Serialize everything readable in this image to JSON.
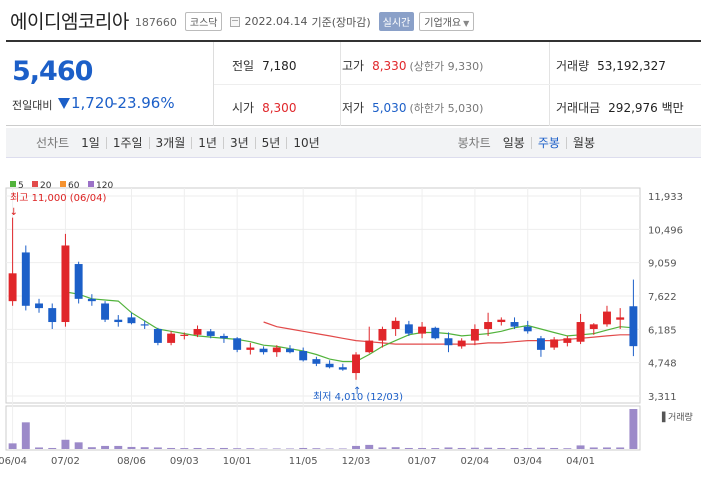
{
  "header": {
    "company": "에이디엠코리아",
    "code": "187660",
    "market": "코스닥",
    "date": "2022.04.14",
    "basis": "기준(장마감)",
    "realtime": "실시간",
    "overview": "기업개요",
    "overview_caret": "▼"
  },
  "summary": {
    "price": "5,460",
    "change_label": "전일대비",
    "change": "1,720",
    "change_pct": "-23.96%",
    "prev_close_label": "전일",
    "prev_close": "7,180",
    "high_label": "고가",
    "high": "8,330",
    "high_note": "(상한가 9,330)",
    "volume_label": "거래량",
    "volume": "53,192,327",
    "open_label": "시가",
    "open": "8,300",
    "low_label": "저가",
    "low": "5,030",
    "low_note": "(하한가 5,030)",
    "amount_label": "거래대금",
    "amount": "292,976 백만"
  },
  "toolbar": {
    "line_label": "선차트",
    "line_items": [
      "1일",
      "1주일",
      "3개월",
      "1년",
      "3년",
      "5년",
      "10년"
    ],
    "candle_label": "봉차트",
    "candle_items": [
      "일봉",
      "주봉",
      "월봉"
    ],
    "candle_active": "주봉"
  },
  "colors": {
    "up": "#e0262a",
    "down": "#1c5fc8",
    "ma5": "#52b33c",
    "ma20": "#e24a4a",
    "ma60": "#f5922f",
    "ma120": "#9b71c7",
    "volume": "#9c8ac9"
  },
  "chart_data": {
    "type": "candlestick",
    "legend": [
      "5",
      "20",
      "60",
      "120"
    ],
    "y_ticks": [
      "11,933",
      "10,496",
      "9,059",
      "7,622",
      "6,185",
      "4,748",
      "3,311"
    ],
    "y_tick_values": [
      11933,
      10496,
      9059,
      7622,
      6185,
      4748,
      3311
    ],
    "x_ticks": [
      "06/04",
      "07/02",
      "08/06",
      "09/03",
      "10/01",
      "11/05",
      "12/03",
      "01/07",
      "02/04",
      "03/04",
      "04/01"
    ],
    "x_tick_index": [
      0,
      4,
      9,
      13,
      17,
      22,
      26,
      31,
      35,
      39,
      43
    ],
    "high_annotation": "최고 11,000 (06/04)",
    "low_annotation": "최저 4,010 (12/03)",
    "volume_label": "거래량",
    "candles": [
      {
        "o": 7400,
        "h": 11000,
        "l": 7200,
        "c": 8600
      },
      {
        "o": 9500,
        "h": 9800,
        "l": 7000,
        "c": 7200
      },
      {
        "o": 7300,
        "h": 7500,
        "l": 6900,
        "c": 7100
      },
      {
        "o": 7100,
        "h": 7300,
        "l": 6200,
        "c": 6500
      },
      {
        "o": 6500,
        "h": 10300,
        "l": 6300,
        "c": 9800
      },
      {
        "o": 9000,
        "h": 9100,
        "l": 7300,
        "c": 7500
      },
      {
        "o": 7500,
        "h": 7700,
        "l": 7200,
        "c": 7400
      },
      {
        "o": 7300,
        "h": 7400,
        "l": 6500,
        "c": 6600
      },
      {
        "o": 6600,
        "h": 6800,
        "l": 6300,
        "c": 6500
      },
      {
        "o": 6700,
        "h": 6900,
        "l": 6400,
        "c": 6450
      },
      {
        "o": 6400,
        "h": 6550,
        "l": 6200,
        "c": 6350
      },
      {
        "o": 6200,
        "h": 6250,
        "l": 5500,
        "c": 5600
      },
      {
        "o": 5600,
        "h": 6100,
        "l": 5500,
        "c": 6000
      },
      {
        "o": 5900,
        "h": 6050,
        "l": 5750,
        "c": 5950
      },
      {
        "o": 5950,
        "h": 6350,
        "l": 5850,
        "c": 6200
      },
      {
        "o": 6100,
        "h": 6200,
        "l": 5800,
        "c": 5900
      },
      {
        "o": 5900,
        "h": 6000,
        "l": 5600,
        "c": 5800
      },
      {
        "o": 5800,
        "h": 5850,
        "l": 5200,
        "c": 5300
      },
      {
        "o": 5300,
        "h": 5600,
        "l": 5100,
        "c": 5400
      },
      {
        "o": 5350,
        "h": 5450,
        "l": 5100,
        "c": 5200
      },
      {
        "o": 5200,
        "h": 5500,
        "l": 5000,
        "c": 5400
      },
      {
        "o": 5350,
        "h": 5500,
        "l": 5150,
        "c": 5200
      },
      {
        "o": 5250,
        "h": 5400,
        "l": 4800,
        "c": 4850
      },
      {
        "o": 4900,
        "h": 5000,
        "l": 4600,
        "c": 4700
      },
      {
        "o": 4700,
        "h": 4850,
        "l": 4500,
        "c": 4550
      },
      {
        "o": 4550,
        "h": 4700,
        "l": 4400,
        "c": 4450
      },
      {
        "o": 4300,
        "h": 5200,
        "l": 4010,
        "c": 5100
      },
      {
        "o": 5200,
        "h": 6300,
        "l": 5150,
        "c": 5700
      },
      {
        "o": 5700,
        "h": 6300,
        "l": 5400,
        "c": 6200
      },
      {
        "o": 6200,
        "h": 6700,
        "l": 5900,
        "c": 6550
      },
      {
        "o": 6400,
        "h": 6550,
        "l": 5900,
        "c": 6000
      },
      {
        "o": 6000,
        "h": 6500,
        "l": 5800,
        "c": 6300
      },
      {
        "o": 6250,
        "h": 6300,
        "l": 5750,
        "c": 5800
      },
      {
        "o": 5800,
        "h": 6050,
        "l": 5200,
        "c": 5500
      },
      {
        "o": 5450,
        "h": 5800,
        "l": 5350,
        "c": 5700
      },
      {
        "o": 5700,
        "h": 6400,
        "l": 5500,
        "c": 6200
      },
      {
        "o": 6200,
        "h": 6900,
        "l": 5900,
        "c": 6500
      },
      {
        "o": 6500,
        "h": 6700,
        "l": 6350,
        "c": 6600
      },
      {
        "o": 6500,
        "h": 6700,
        "l": 6200,
        "c": 6300
      },
      {
        "o": 6300,
        "h": 6550,
        "l": 6000,
        "c": 6100
      },
      {
        "o": 5800,
        "h": 5900,
        "l": 5000,
        "c": 5300
      },
      {
        "o": 5400,
        "h": 5850,
        "l": 5300,
        "c": 5750
      },
      {
        "o": 5600,
        "h": 5900,
        "l": 5450,
        "c": 5800
      },
      {
        "o": 5650,
        "h": 6850,
        "l": 5550,
        "c": 6500
      },
      {
        "o": 6200,
        "h": 6450,
        "l": 5950,
        "c": 6400
      },
      {
        "o": 6400,
        "h": 7200,
        "l": 6300,
        "c": 6950
      },
      {
        "o": 6600,
        "h": 7100,
        "l": 6200,
        "c": 6700
      },
      {
        "o": 7180,
        "h": 8330,
        "l": 5030,
        "c": 5460
      }
    ],
    "ma5": [
      null,
      null,
      null,
      null,
      7800,
      7700,
      7500,
      7450,
      7400,
      6900,
      6550,
      6200,
      6100,
      6000,
      5900,
      5850,
      5800,
      5750,
      5650,
      5500,
      5450,
      5350,
      5250,
      5100,
      4900,
      4800,
      4800,
      5100,
      5450,
      5700,
      5950,
      6050,
      6050,
      6000,
      5900,
      5950,
      6000,
      6100,
      6250,
      6350,
      6200,
      6050,
      5900,
      5950,
      6000,
      6150,
      6300,
      6250
    ],
    "ma20": [
      null,
      null,
      null,
      null,
      null,
      null,
      null,
      null,
      null,
      null,
      null,
      null,
      null,
      null,
      null,
      null,
      null,
      null,
      null,
      6500,
      6300,
      6200,
      6100,
      6000,
      5900,
      5800,
      5700,
      5650,
      5600,
      5550,
      5550,
      5550,
      5550,
      5550,
      5550,
      5550,
      5600,
      5600,
      5650,
      5700,
      5700,
      5700,
      5750,
      5800,
      5850,
      5900,
      5950,
      5950
    ],
    "volume": [
      1.1,
      5.2,
      0.3,
      0.2,
      1.8,
      1.3,
      0.35,
      0.6,
      0.6,
      0.4,
      0.35,
      0.3,
      0.2,
      0.18,
      0.2,
      0.17,
      0.2,
      0.15,
      0.15,
      0.1,
      0.1,
      0.1,
      0.2,
      0.15,
      0.1,
      0.1,
      0.6,
      0.8,
      0.3,
      0.35,
      0.2,
      0.2,
      0.18,
      0.3,
      0.2,
      0.25,
      0.25,
      0.2,
      0.2,
      0.2,
      0.25,
      0.2,
      0.15,
      0.7,
      0.3,
      0.3,
      0.3,
      7.8
    ]
  }
}
